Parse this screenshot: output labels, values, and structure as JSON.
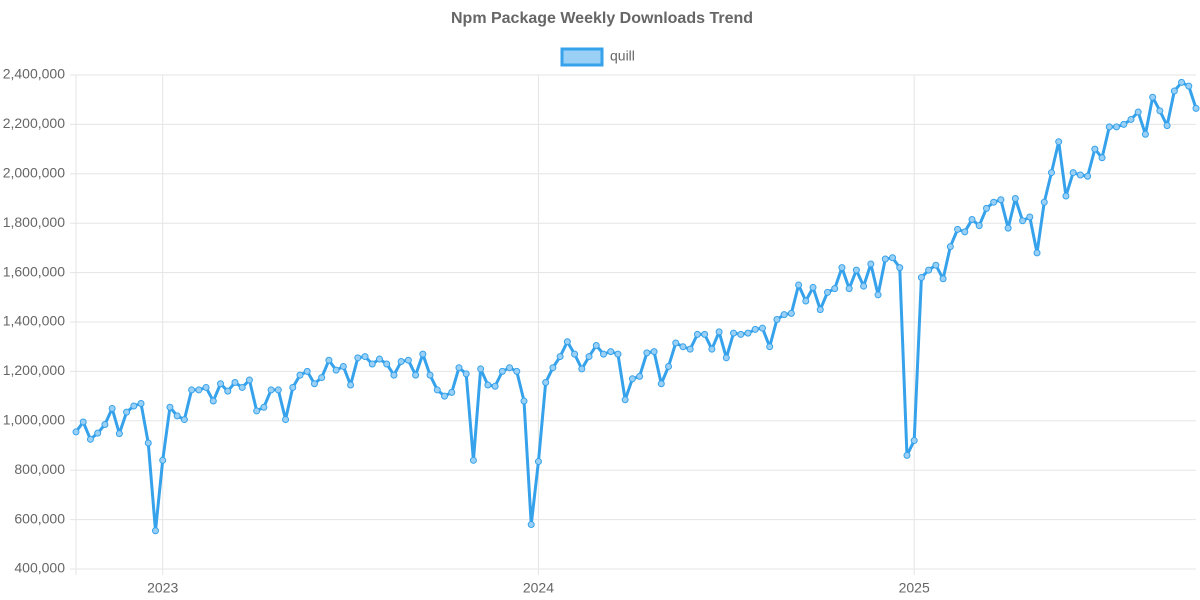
{
  "chart_data": {
    "type": "line",
    "title": "Npm Package Weekly Downloads Trend",
    "categories": [
      null,
      null,
      null,
      null,
      null,
      null,
      null,
      null,
      null,
      null,
      null,
      null,
      "2023",
      null,
      null,
      null,
      null,
      null,
      null,
      null,
      null,
      null,
      null,
      null,
      null,
      null,
      null,
      null,
      null,
      null,
      null,
      null,
      null,
      null,
      null,
      null,
      null,
      null,
      null,
      null,
      null,
      null,
      null,
      null,
      null,
      null,
      null,
      null,
      null,
      null,
      null,
      null,
      null,
      null,
      null,
      null,
      null,
      null,
      null,
      null,
      null,
      null,
      null,
      null,
      "2024",
      null,
      null,
      null,
      null,
      null,
      null,
      null,
      null,
      null,
      null,
      null,
      null,
      null,
      null,
      null,
      null,
      null,
      null,
      null,
      null,
      null,
      null,
      null,
      null,
      null,
      null,
      null,
      null,
      null,
      null,
      null,
      null,
      null,
      null,
      null,
      null,
      null,
      null,
      null,
      null,
      null,
      null,
      null,
      null,
      null,
      null,
      null,
      null,
      null,
      null,
      null,
      "2025",
      null,
      null,
      null,
      null,
      null,
      null,
      null,
      null,
      null,
      null,
      null,
      null,
      null,
      null,
      null,
      null,
      null,
      null,
      null,
      null,
      null,
      null,
      null,
      null,
      null,
      null,
      null,
      null,
      null,
      null,
      null,
      null,
      null,
      null,
      null,
      null,
      null,
      null,
      null
    ],
    "series": [
      {
        "name": "quill",
        "color": "#36a2eb",
        "values": [
          955000,
          995000,
          925000,
          950000,
          985000,
          1050000,
          948000,
          1035000,
          1060000,
          1070000,
          910000,
          555000,
          840000,
          1055000,
          1020000,
          1005000,
          1125000,
          1125000,
          1135000,
          1080000,
          1150000,
          1120000,
          1155000,
          1135000,
          1165000,
          1040000,
          1055000,
          1125000,
          1125000,
          1005000,
          1135000,
          1185000,
          1200000,
          1150000,
          1175000,
          1245000,
          1205000,
          1220000,
          1145000,
          1255000,
          1260000,
          1230000,
          1250000,
          1230000,
          1185000,
          1240000,
          1245000,
          1185000,
          1270000,
          1185000,
          1125000,
          1100000,
          1115000,
          1215000,
          1190000,
          840000,
          1210000,
          1145000,
          1140000,
          1200000,
          1215000,
          1200000,
          1080000,
          580000,
          835000,
          1155000,
          1215000,
          1260000,
          1320000,
          1270000,
          1210000,
          1260000,
          1305000,
          1270000,
          1280000,
          1270000,
          1085000,
          1170000,
          1180000,
          1275000,
          1280000,
          1150000,
          1220000,
          1315000,
          1300000,
          1290000,
          1350000,
          1350000,
          1290000,
          1360000,
          1255000,
          1355000,
          1350000,
          1355000,
          1370000,
          1375000,
          1300000,
          1410000,
          1430000,
          1435000,
          1550000,
          1485000,
          1540000,
          1450000,
          1520000,
          1535000,
          1620000,
          1535000,
          1610000,
          1545000,
          1635000,
          1510000,
          1655000,
          1660000,
          1620000,
          860000,
          920000,
          1580000,
          1610000,
          1630000,
          1575000,
          1705000,
          1775000,
          1765000,
          1815000,
          1790000,
          1860000,
          1885000,
          1895000,
          1780000,
          1900000,
          1810000,
          1825000,
          1680000,
          1885000,
          2005000,
          2130000,
          1910000,
          2005000,
          1995000,
          1990000,
          2100000,
          2065000,
          2190000,
          2190000,
          2200000,
          2220000,
          2250000,
          2160000,
          2310000,
          2255000,
          2195000,
          2335000,
          2370000,
          2355000,
          2265000
        ]
      }
    ],
    "ylim": [
      400000,
      2400000
    ],
    "yticks": [
      {
        "value": 400000,
        "label": "400,000"
      },
      {
        "value": 600000,
        "label": "600,000"
      },
      {
        "value": 800000,
        "label": "800,000"
      },
      {
        "value": 1000000,
        "label": "1,000,000"
      },
      {
        "value": 1200000,
        "label": "1,200,000"
      },
      {
        "value": 1400000,
        "label": "1,400,000"
      },
      {
        "value": 1600000,
        "label": "1,600,000"
      },
      {
        "value": 1800000,
        "label": "1,800,000"
      },
      {
        "value": 2000000,
        "label": "2,000,000"
      },
      {
        "value": 2200000,
        "label": "2,200,000"
      },
      {
        "value": 2400000,
        "label": "2,400,000"
      }
    ],
    "grid": true,
    "legend": "top"
  }
}
